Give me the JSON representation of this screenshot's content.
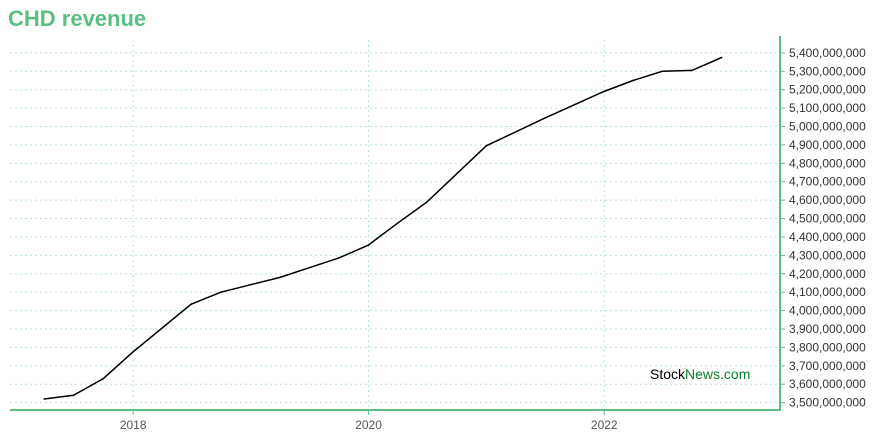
{
  "title": "CHD revenue",
  "watermark": {
    "part1": "Stock",
    "part2": "News.com"
  },
  "colors": {
    "title": "#5cbf82",
    "axis": "#5cbf82",
    "grid": "#b8e6cc",
    "line": "#000000"
  },
  "chart_data": {
    "type": "line",
    "title": "CHD revenue",
    "xlabel": "",
    "ylabel": "",
    "x_ticks": [
      "2018",
      "2020",
      "2022"
    ],
    "y_ticks": [
      3500000000,
      3600000000,
      3700000000,
      3800000000,
      3900000000,
      4000000000,
      4100000000,
      4200000000,
      4300000000,
      4400000000,
      4500000000,
      4600000000,
      4700000000,
      4800000000,
      4900000000,
      5000000000,
      5100000000,
      5200000000,
      5300000000,
      5400000000
    ],
    "y_tick_labels": [
      "3,500,000,000",
      "3,600,000,000",
      "3,700,000,000",
      "3,800,000,000",
      "3,900,000,000",
      "4,000,000,000",
      "4,100,000,000",
      "4,200,000,000",
      "4,300,000,000",
      "4,400,000,000",
      "4,500,000,000",
      "4,600,000,000",
      "4,700,000,000",
      "4,800,000,000",
      "4,900,000,000",
      "5,000,000,000",
      "5,100,000,000",
      "5,200,000,000",
      "5,300,000,000",
      "5,400,000,000"
    ],
    "ylim": [
      3460000000,
      5470000000
    ],
    "xlim": [
      "2016-12-15",
      "2023-06-30"
    ],
    "grid": true,
    "y_axis_side": "right",
    "series": [
      {
        "color": "#000000",
        "points": [
          {
            "x": "2017-03-31",
            "y": 3520000000
          },
          {
            "x": "2017-06-30",
            "y": 3540000000
          },
          {
            "x": "2017-09-30",
            "y": 3630000000
          },
          {
            "x": "2017-12-31",
            "y": 3775000000
          },
          {
            "x": "2018-06-30",
            "y": 4035000000
          },
          {
            "x": "2018-09-30",
            "y": 4100000000
          },
          {
            "x": "2019-03-31",
            "y": 4180000000
          },
          {
            "x": "2019-09-30",
            "y": 4285000000
          },
          {
            "x": "2019-12-31",
            "y": 4355000000
          },
          {
            "x": "2020-03-31",
            "y": 4475000000
          },
          {
            "x": "2020-06-30",
            "y": 4590000000
          },
          {
            "x": "2020-12-31",
            "y": 4895000000
          },
          {
            "x": "2021-06-30",
            "y": 5045000000
          },
          {
            "x": "2021-12-31",
            "y": 5190000000
          },
          {
            "x": "2022-03-31",
            "y": 5250000000
          },
          {
            "x": "2022-06-30",
            "y": 5300000000
          },
          {
            "x": "2022-09-30",
            "y": 5305000000
          },
          {
            "x": "2022-12-31",
            "y": 5375000000
          }
        ]
      }
    ]
  }
}
